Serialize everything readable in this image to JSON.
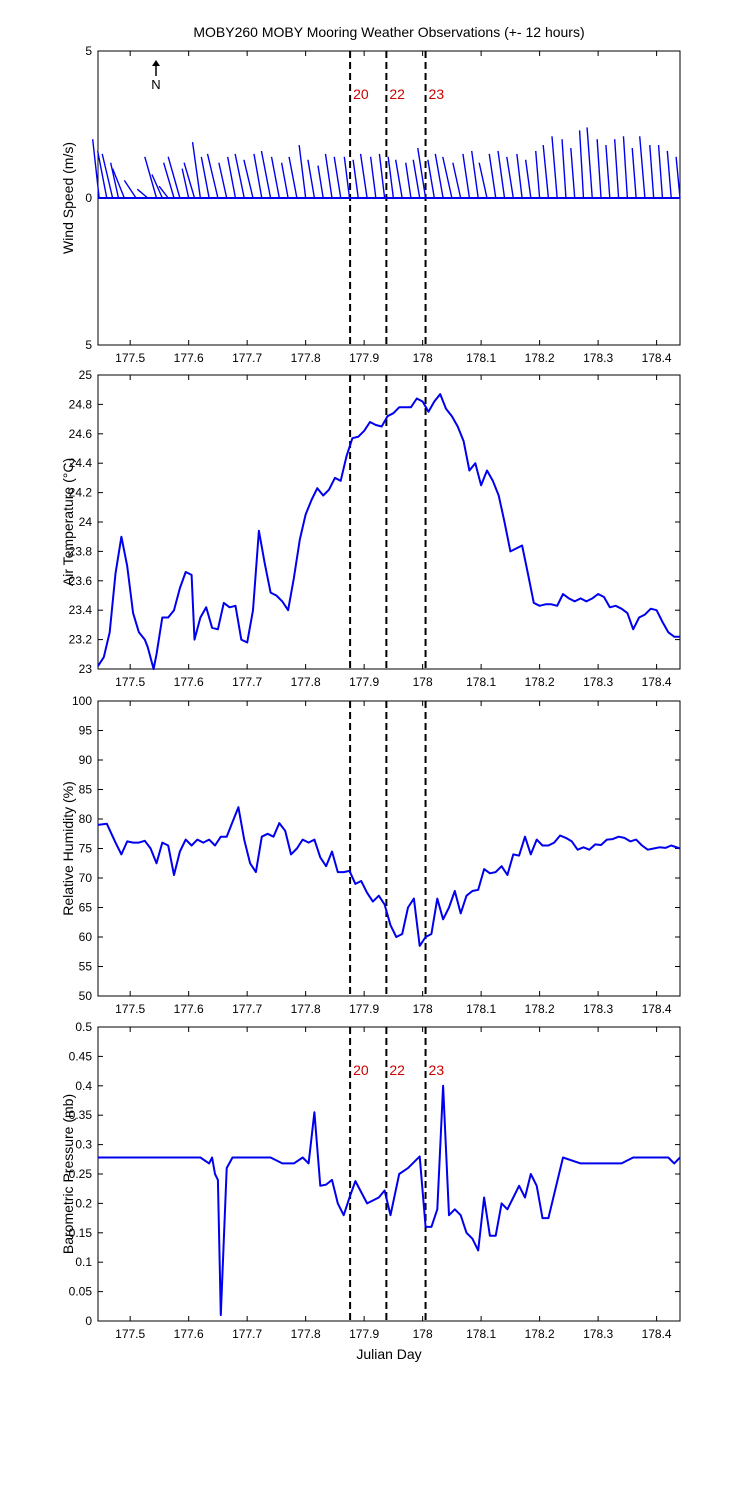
{
  "title": "MOBY260 MOBY Mooring Weather Observations (+- 12 hours)",
  "xlabel": "Julian Day",
  "north_label": "N",
  "colors": {
    "line": "#0000ee",
    "marker_label": "#cc0000",
    "axis": "#000000"
  },
  "x_range": [
    177.445,
    178.44
  ],
  "x_ticks": [
    177.5,
    177.6,
    177.7,
    177.8,
    177.9,
    178,
    178.1,
    178.2,
    178.3,
    178.4
  ],
  "x_tick_labels": [
    "177.5",
    "177.6",
    "177.7",
    "177.8",
    "177.9",
    "178",
    "178.1",
    "178.2",
    "178.3",
    "178.4"
  ],
  "markers": [
    {
      "x": 177.876,
      "label": "20"
    },
    {
      "x": 177.938,
      "label": "22"
    },
    {
      "x": 178.005,
      "label": "23"
    }
  ],
  "chart_data": [
    {
      "type": "line",
      "subtype": "wind-stick",
      "ylabel": "Wind Speed (m/s)",
      "ylim": [
        -5,
        5
      ],
      "y_ticks": [
        -5,
        0,
        5
      ],
      "y_tick_labels": [
        "5",
        "0",
        "5"
      ],
      "show_markers": true,
      "series": [
        {
          "x": [
            177.447,
            177.46,
            177.47,
            177.48,
            177.49,
            177.51,
            177.53,
            177.545,
            177.555,
            177.565,
            177.575,
            177.585,
            177.6,
            177.61,
            177.62,
            177.635,
            177.65,
            177.665,
            177.68,
            177.695,
            177.71,
            177.725,
            177.74,
            177.755,
            177.77,
            177.785,
            177.8,
            177.815,
            177.83,
            177.845,
            177.86,
            177.875,
            177.89,
            177.905,
            177.92,
            177.935,
            177.95,
            177.965,
            177.98,
            177.995,
            178.005,
            178.02,
            178.035,
            178.05,
            178.065,
            178.08,
            178.095,
            178.11,
            178.125,
            178.14,
            178.155,
            178.17,
            178.185,
            178.2,
            178.215,
            178.23,
            178.245,
            178.26,
            178.275,
            178.29,
            178.305,
            178.32,
            178.335,
            178.35,
            178.365,
            178.38,
            178.395,
            178.41,
            178.425,
            178.44
          ],
          "u": [
            0.5,
            0.7,
            0.8,
            0.6,
            0.9,
            0.9,
            0.8,
            0.9,
            0.8,
            0.7,
            0.8,
            0.9,
            0.5,
            0.8,
            0.6,
            0.6,
            0.8,
            0.6,
            0.6,
            0.7,
            0.7,
            0.6,
            0.7,
            0.6,
            0.5,
            0.6,
            0.5,
            0.5,
            0.4,
            0.5,
            0.5,
            0.4,
            0.4,
            0.5,
            0.4,
            0.4,
            0.4,
            0.5,
            0.4,
            0.5,
            0.6,
            0.5,
            0.6,
            0.7,
            0.6,
            0.5,
            0.5,
            0.6,
            0.5,
            0.5,
            0.5,
            0.4,
            0.4,
            0.3,
            0.4,
            0.4,
            0.3,
            0.3,
            0.3,
            0.4,
            0.3,
            0.3,
            0.3,
            0.3,
            0.3,
            0.4,
            0.3,
            0.3,
            0.3,
            0.3
          ],
          "v": [
            2.0,
            1.6,
            1.5,
            1.2,
            1.0,
            0.6,
            0.3,
            1.4,
            0.8,
            0.4,
            1.2,
            1.4,
            1.0,
            1.2,
            1.9,
            1.4,
            1.5,
            1.2,
            1.4,
            1.5,
            1.3,
            1.5,
            1.6,
            1.4,
            1.2,
            1.4,
            1.8,
            1.3,
            1.1,
            1.5,
            1.4,
            1.4,
            1.3,
            1.5,
            1.4,
            1.5,
            1.4,
            1.3,
            1.2,
            1.3,
            1.7,
            1.3,
            1.5,
            1.4,
            1.2,
            1.5,
            1.6,
            1.2,
            1.5,
            1.6,
            1.4,
            1.5,
            1.3,
            1.6,
            1.8,
            2.1,
            2.0,
            1.7,
            2.3,
            2.4,
            2.0,
            1.8,
            2.0,
            2.1,
            1.7,
            2.1,
            1.8,
            1.8,
            1.6,
            1.4
          ]
        }
      ]
    },
    {
      "type": "line",
      "ylabel": "Air Temperature (°C)",
      "ylim": [
        23,
        25
      ],
      "y_ticks": [
        23,
        23.2,
        23.4,
        23.6,
        23.8,
        24,
        24.2,
        24.4,
        24.6,
        24.8,
        25
      ],
      "y_tick_labels": [
        "23",
        "23.2",
        "23.4",
        "23.6",
        "23.8",
        "24",
        "24.2",
        "24.4",
        "24.6",
        "24.8",
        "25"
      ],
      "show_markers": false,
      "series": [
        {
          "x": [
            177.445,
            177.455,
            177.465,
            177.475,
            177.485,
            177.495,
            177.505,
            177.515,
            177.525,
            177.53,
            177.54,
            177.545,
            177.555,
            177.565,
            177.575,
            177.585,
            177.595,
            177.605,
            177.61,
            177.62,
            177.63,
            177.64,
            177.65,
            177.66,
            177.67,
            177.68,
            177.69,
            177.7,
            177.71,
            177.72,
            177.73,
            177.74,
            177.75,
            177.76,
            177.77,
            177.78,
            177.79,
            177.8,
            177.81,
            177.82,
            177.83,
            177.84,
            177.85,
            177.86,
            177.87,
            177.88,
            177.89,
            177.9,
            177.91,
            177.92,
            177.93,
            177.94,
            177.95,
            177.96,
            177.97,
            177.98,
            177.99,
            178.0,
            178.01,
            178.02,
            178.03,
            178.04,
            178.05,
            178.06,
            178.07,
            178.08,
            178.09,
            178.1,
            178.11,
            178.12,
            178.13,
            178.14,
            178.15,
            178.16,
            178.17,
            178.18,
            178.19,
            178.2,
            178.21,
            178.22,
            178.23,
            178.24,
            178.25,
            178.26,
            178.27,
            178.28,
            178.29,
            178.3,
            178.31,
            178.32,
            178.33,
            178.34,
            178.35,
            178.36,
            178.37,
            178.38,
            178.39,
            178.4,
            178.41,
            178.42,
            178.43,
            178.44
          ],
          "y": [
            23.02,
            23.08,
            23.25,
            23.65,
            23.9,
            23.7,
            23.38,
            23.25,
            23.2,
            23.15,
            23.0,
            23.1,
            23.35,
            23.35,
            23.4,
            23.55,
            23.66,
            23.64,
            23.2,
            23.35,
            23.42,
            23.28,
            23.27,
            23.45,
            23.42,
            23.43,
            23.2,
            23.18,
            23.4,
            23.94,
            23.72,
            23.52,
            23.5,
            23.46,
            23.4,
            23.62,
            23.88,
            24.05,
            24.15,
            24.23,
            24.18,
            24.22,
            24.3,
            24.28,
            24.45,
            24.57,
            24.58,
            24.62,
            24.68,
            24.66,
            24.65,
            24.72,
            24.74,
            24.78,
            24.78,
            24.78,
            24.84,
            24.82,
            24.75,
            24.82,
            24.87,
            24.77,
            24.72,
            24.65,
            24.55,
            24.35,
            24.4,
            24.25,
            24.35,
            24.28,
            24.18,
            24.0,
            23.8,
            23.82,
            23.84,
            23.65,
            23.45,
            23.43,
            23.44,
            23.44,
            23.43,
            23.51,
            23.48,
            23.46,
            23.48,
            23.46,
            23.48,
            23.51,
            23.49,
            23.42,
            23.43,
            23.41,
            23.38,
            23.27,
            23.35,
            23.37,
            23.41,
            23.4,
            23.32,
            23.25,
            23.22,
            23.22
          ]
        }
      ]
    },
    {
      "type": "line",
      "ylabel": "Relative Humidity (%)",
      "ylim": [
        50,
        100
      ],
      "y_ticks": [
        50,
        55,
        60,
        65,
        70,
        75,
        80,
        85,
        90,
        95,
        100
      ],
      "y_tick_labels": [
        "50",
        "55",
        "60",
        "65",
        "70",
        "75",
        "80",
        "85",
        "90",
        "95",
        "100"
      ],
      "show_markers": false,
      "series": [
        {
          "x": [
            177.445,
            177.46,
            177.475,
            177.485,
            177.495,
            177.505,
            177.515,
            177.525,
            177.535,
            177.545,
            177.555,
            177.565,
            177.575,
            177.585,
            177.595,
            177.605,
            177.615,
            177.625,
            177.635,
            177.645,
            177.655,
            177.665,
            177.675,
            177.685,
            177.695,
            177.705,
            177.715,
            177.725,
            177.735,
            177.745,
            177.755,
            177.765,
            177.775,
            177.785,
            177.795,
            177.805,
            177.815,
            177.825,
            177.835,
            177.845,
            177.855,
            177.865,
            177.875,
            177.885,
            177.895,
            177.905,
            177.915,
            177.925,
            177.935,
            177.945,
            177.955,
            177.965,
            177.975,
            177.985,
            177.995,
            178.005,
            178.015,
            178.025,
            178.035,
            178.045,
            178.055,
            178.065,
            178.075,
            178.085,
            178.095,
            178.105,
            178.115,
            178.125,
            178.135,
            178.145,
            178.155,
            178.165,
            178.175,
            178.185,
            178.195,
            178.205,
            178.215,
            178.225,
            178.235,
            178.245,
            178.255,
            178.265,
            178.275,
            178.285,
            178.295,
            178.305,
            178.315,
            178.325,
            178.335,
            178.345,
            178.355,
            178.365,
            178.375,
            178.385,
            178.395,
            178.405,
            178.415,
            178.425,
            178.44
          ],
          "y": [
            79,
            79.2,
            76,
            74,
            76.2,
            76,
            76,
            76.3,
            75,
            72.5,
            76,
            75.5,
            70.5,
            74.5,
            76.5,
            75.5,
            76.5,
            76,
            76.5,
            75.5,
            77,
            77,
            79.5,
            82,
            76.5,
            72.5,
            71,
            77,
            77.5,
            77,
            79.3,
            78,
            74,
            75,
            76.5,
            76,
            76.5,
            73.5,
            72,
            74.5,
            71,
            71,
            71.2,
            69,
            69.5,
            67.5,
            66,
            67,
            65.5,
            62,
            60,
            60.5,
            65,
            66.5,
            58.5,
            60,
            60.5,
            66.5,
            63,
            65,
            67.8,
            64,
            67,
            67.8,
            68,
            71.5,
            70.8,
            71,
            72,
            70.5,
            74,
            73.8,
            77,
            74,
            76.5,
            75.5,
            75.5,
            76,
            77.2,
            76.8,
            76.2,
            74.8,
            75.2,
            74.8,
            75.7,
            75.6,
            76.5,
            76.6,
            77,
            76.8,
            76.2,
            76.5,
            75.5,
            74.8,
            75,
            75.2,
            75.1,
            75.5,
            75
          ]
        }
      ]
    },
    {
      "type": "line",
      "ylabel": "Barometric Pressure (mb)",
      "ylim": [
        0,
        0.5
      ],
      "y_ticks": [
        0,
        0.05,
        0.1,
        0.15,
        0.2,
        0.25,
        0.3,
        0.35,
        0.4,
        0.45,
        0.5
      ],
      "y_tick_labels": [
        "0",
        "0.05",
        "0.1",
        "0.15",
        "0.2",
        "0.25",
        "0.3",
        "0.35",
        "0.4",
        "0.45",
        "0.5"
      ],
      "show_markers": true,
      "series": [
        {
          "x": [
            177.445,
            177.47,
            177.5,
            177.53,
            177.56,
            177.59,
            177.62,
            177.635,
            177.64,
            177.645,
            177.65,
            177.655,
            177.665,
            177.675,
            177.69,
            177.72,
            177.74,
            177.76,
            177.78,
            177.795,
            177.805,
            177.815,
            177.825,
            177.835,
            177.845,
            177.855,
            177.865,
            177.875,
            177.885,
            177.905,
            177.925,
            177.935,
            177.945,
            177.96,
            177.975,
            177.985,
            177.995,
            178.005,
            178.015,
            178.025,
            178.035,
            178.045,
            178.055,
            178.065,
            178.075,
            178.085,
            178.095,
            178.105,
            178.115,
            178.125,
            178.135,
            178.145,
            178.155,
            178.165,
            178.175,
            178.185,
            178.195,
            178.205,
            178.215,
            178.24,
            178.27,
            178.3,
            178.33,
            178.34,
            178.36,
            178.39,
            178.42,
            178.43,
            178.44
          ],
          "y": [
            0.278,
            0.278,
            0.278,
            0.278,
            0.278,
            0.278,
            0.278,
            0.268,
            0.278,
            0.25,
            0.24,
            0.01,
            0.26,
            0.278,
            0.278,
            0.278,
            0.278,
            0.268,
            0.268,
            0.278,
            0.268,
            0.355,
            0.23,
            0.232,
            0.24,
            0.2,
            0.18,
            0.21,
            0.238,
            0.2,
            0.21,
            0.222,
            0.18,
            0.25,
            0.26,
            0.27,
            0.28,
            0.16,
            0.16,
            0.19,
            0.4,
            0.18,
            0.19,
            0.18,
            0.15,
            0.14,
            0.12,
            0.21,
            0.145,
            0.145,
            0.2,
            0.19,
            0.21,
            0.23,
            0.21,
            0.25,
            0.23,
            0.175,
            0.175,
            0.278,
            0.268,
            0.268,
            0.268,
            0.268,
            0.278,
            0.278,
            0.278,
            0.268,
            0.278
          ]
        }
      ]
    }
  ]
}
